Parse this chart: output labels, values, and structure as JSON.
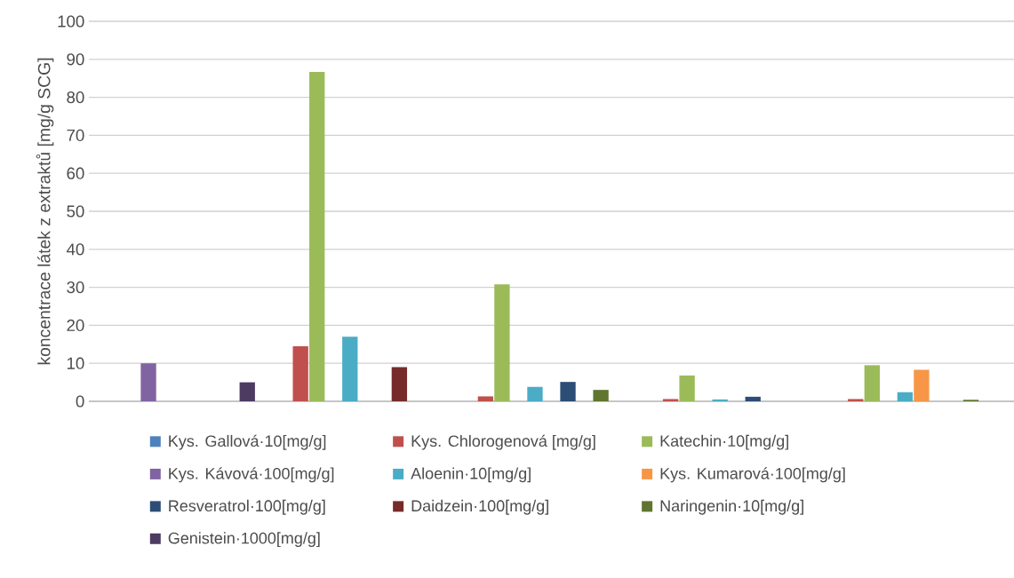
{
  "chart_data": {
    "type": "bar",
    "ylabel": "koncentrace látek z extraktů [mg/g SCG]",
    "categories": [
      null,
      null,
      null,
      null,
      null
    ],
    "series": [
      {
        "name": "Kys. Gallová·10[mg/g]",
        "color": "#4f81bd",
        "values": [
          null,
          null,
          null,
          null,
          null
        ]
      },
      {
        "name": "Kys. Chlorogenová [mg/g]",
        "color": "#c0504d",
        "values": [
          null,
          14.5,
          1.3,
          0.6,
          0.6
        ]
      },
      {
        "name": "Katechin·10[mg/g]",
        "color": "#9bbb59",
        "values": [
          null,
          86.7,
          30.8,
          6.8,
          9.5
        ]
      },
      {
        "name": "Kys. Kávová·100[mg/g]",
        "color": "#8064a2",
        "values": [
          10,
          null,
          null,
          null,
          null
        ]
      },
      {
        "name": "Aloenin·10[mg/g]",
        "color": "#4bacc6",
        "values": [
          null,
          17,
          3.8,
          0.5,
          2.4
        ]
      },
      {
        "name": "Kys. Kumarová·100[mg/g]",
        "color": "#f79646",
        "values": [
          null,
          null,
          null,
          null,
          8.3
        ]
      },
      {
        "name": "Resveratrol·100[mg/g]",
        "color": "#2c4d75",
        "values": [
          null,
          null,
          5.1,
          1.2,
          null
        ]
      },
      {
        "name": "Daidzein·100[mg/g]",
        "color": "#772c2a",
        "values": [
          null,
          9,
          null,
          null,
          null
        ]
      },
      {
        "name": "Naringenin·10[mg/g]",
        "color": "#5f7530",
        "values": [
          null,
          null,
          3.0,
          null,
          0.4
        ]
      },
      {
        "name": "Genistein·1000[mg/g]",
        "color": "#4d3b62",
        "values": [
          5,
          null,
          null,
          null,
          null
        ]
      }
    ],
    "ylim": [
      0,
      100
    ],
    "yticks": [
      0,
      10,
      20,
      30,
      40,
      50,
      60,
      70,
      80,
      90,
      100
    ],
    "grid": "y",
    "legend": "bottom"
  }
}
